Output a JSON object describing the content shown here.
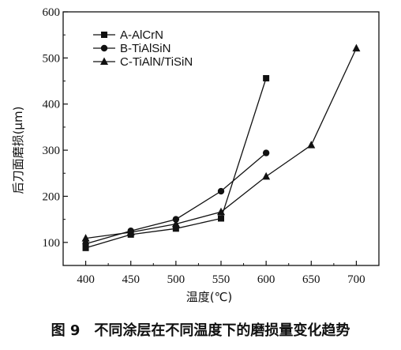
{
  "chart_data": {
    "type": "line",
    "x": [
      400,
      450,
      500,
      550,
      600,
      650,
      700
    ],
    "series": [
      {
        "name": "A-AlCrN",
        "marker": "square",
        "points": [
          [
            400,
            88
          ],
          [
            450,
            117
          ],
          [
            500,
            130
          ],
          [
            550,
            152
          ],
          [
            600,
            456
          ]
        ]
      },
      {
        "name": "B-TiAlSiN",
        "marker": "circle",
        "points": [
          [
            400,
            97
          ],
          [
            450,
            125
          ],
          [
            500,
            150
          ],
          [
            550,
            211
          ],
          [
            600,
            294
          ]
        ]
      },
      {
        "name": "C-TiAlN/TiSiN",
        "marker": "triangle",
        "points": [
          [
            400,
            109
          ],
          [
            450,
            122
          ],
          [
            500,
            140
          ],
          [
            550,
            166
          ],
          [
            600,
            243
          ],
          [
            650,
            311
          ],
          [
            700,
            521
          ]
        ]
      }
    ],
    "xlabel": "温度(℃)",
    "ylabel": "后刀面磨损(μm)",
    "xlim": [
      375,
      725
    ],
    "ylim": [
      50,
      600
    ],
    "xticks": [
      400,
      450,
      500,
      550,
      600,
      650,
      700
    ],
    "yticks": [
      100,
      200,
      300,
      400,
      500,
      600
    ],
    "legend_position": "top-left",
    "grid": false,
    "line_color": "#111111"
  },
  "caption": "图 9　不同涂层在不同温度下的磨损量变化趋势"
}
